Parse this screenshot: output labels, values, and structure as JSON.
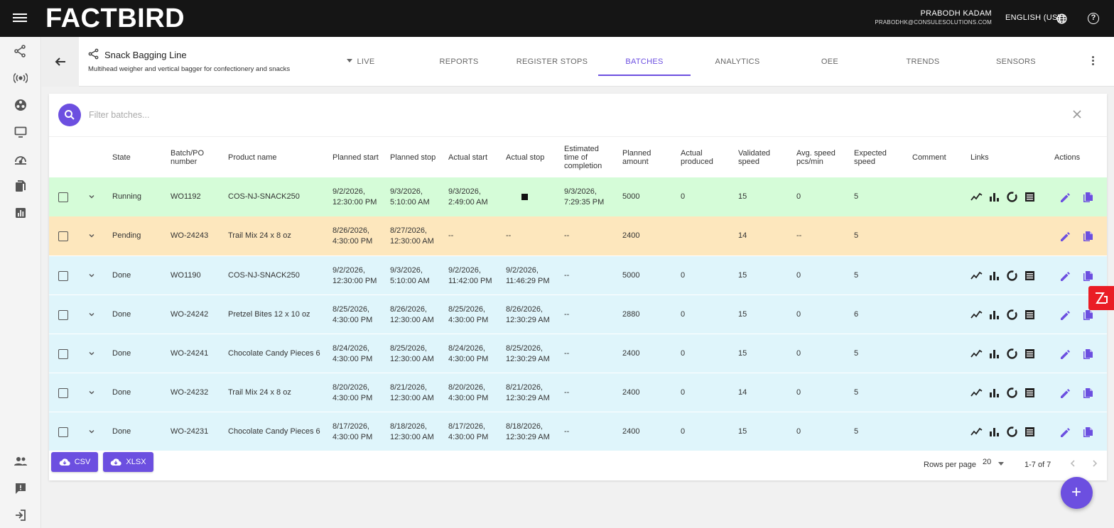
{
  "app": {
    "logo": "FACTBIRD",
    "user_name": "PRABODH KADAM",
    "user_email": "PRABODHK@CONSULESOLUTIONS.COM",
    "language": "ENGLISH (US)",
    "accent_color": "#6c4fe0"
  },
  "line": {
    "name": "Snack Bagging Line",
    "description": "Multihead weigher and vertical bagger for confectionery and snacks"
  },
  "tabs": [
    {
      "label": "LIVE"
    },
    {
      "label": "REPORTS"
    },
    {
      "label": "REGISTER STOPS"
    },
    {
      "label": "BATCHES",
      "active": true
    },
    {
      "label": "ANALYTICS"
    },
    {
      "label": "OEE"
    },
    {
      "label": "TRENDS"
    },
    {
      "label": "SENSORS"
    }
  ],
  "filter": {
    "placeholder": "Filter batches...",
    "value": ""
  },
  "columns": [
    "State",
    "Batch/PO number",
    "Product name",
    "Planned start",
    "Planned stop",
    "Actual start",
    "Actual stop",
    "Estimated time of completion",
    "Planned amount",
    "Actual produced",
    "Validated speed",
    "Avg. speed pcs/min",
    "Expected speed",
    "Comment",
    "Links",
    "Actions"
  ],
  "rows": [
    {
      "state": "Running",
      "batch": "WO1192",
      "product": "COS-NJ-SNACK250",
      "planned_start": "9/2/2026, 12:30:00 PM",
      "planned_stop": "9/3/2026, 5:10:00 AM",
      "actual_start": "9/3/2026, 2:49:00 AM",
      "actual_stop": "",
      "eta": "9/3/2026, 7:29:35 PM",
      "planned_amount": "5000",
      "actual_produced": "0",
      "validated_speed": "15",
      "avg_speed": "0",
      "expected_speed": "5",
      "comment": ""
    },
    {
      "state": "Pending",
      "batch": "WO-24243",
      "product": "Trail Mix 24 x 8 oz",
      "planned_start": "8/26/2026, 4:30:00 PM",
      "planned_stop": "8/27/2026, 12:30:00 AM",
      "actual_start": "--",
      "actual_stop": "--",
      "eta": "--",
      "planned_amount": "2400",
      "actual_produced": "",
      "validated_speed": "14",
      "avg_speed": "--",
      "expected_speed": "5",
      "comment": ""
    },
    {
      "state": "Done",
      "batch": "WO1190",
      "product": "COS-NJ-SNACK250",
      "planned_start": "9/2/2026, 12:30:00 PM",
      "planned_stop": "9/3/2026, 5:10:00 AM",
      "actual_start": "9/2/2026, 11:42:00 PM",
      "actual_stop": "9/2/2026, 11:46:29 PM",
      "eta": "--",
      "planned_amount": "5000",
      "actual_produced": "0",
      "validated_speed": "15",
      "avg_speed": "0",
      "expected_speed": "5",
      "comment": ""
    },
    {
      "state": "Done",
      "batch": "WO-24242",
      "product": "Pretzel Bites 12 x 10 oz",
      "planned_start": "8/25/2026, 4:30:00 PM",
      "planned_stop": "8/26/2026, 12:30:00 AM",
      "actual_start": "8/25/2026, 4:30:00 PM",
      "actual_stop": "8/26/2026, 12:30:29 AM",
      "eta": "--",
      "planned_amount": "2880",
      "actual_produced": "0",
      "validated_speed": "15",
      "avg_speed": "0",
      "expected_speed": "6",
      "comment": ""
    },
    {
      "state": "Done",
      "batch": "WO-24241",
      "product": "Chocolate Candy Pieces 6",
      "planned_start": "8/24/2026, 4:30:00 PM",
      "planned_stop": "8/25/2026, 12:30:00 AM",
      "actual_start": "8/24/2026, 4:30:00 PM",
      "actual_stop": "8/25/2026, 12:30:29 AM",
      "eta": "--",
      "planned_amount": "2400",
      "actual_produced": "0",
      "validated_speed": "15",
      "avg_speed": "0",
      "expected_speed": "5",
      "comment": ""
    },
    {
      "state": "Done",
      "batch": "WO-24232",
      "product": "Trail Mix 24 x 8 oz",
      "planned_start": "8/20/2026, 4:30:00 PM",
      "planned_stop": "8/21/2026, 12:30:00 AM",
      "actual_start": "8/20/2026, 4:30:00 PM",
      "actual_stop": "8/21/2026, 12:30:29 AM",
      "eta": "--",
      "planned_amount": "2400",
      "actual_produced": "0",
      "validated_speed": "14",
      "avg_speed": "0",
      "expected_speed": "5",
      "comment": ""
    },
    {
      "state": "Done",
      "batch": "WO-24231",
      "product": "Chocolate Candy Pieces 6",
      "planned_start": "8/17/2026, 4:30:00 PM",
      "planned_stop": "8/18/2026, 12:30:00 AM",
      "actual_start": "8/17/2026, 4:30:00 PM",
      "actual_stop": "8/18/2026, 12:30:29 AM",
      "eta": "--",
      "planned_amount": "2400",
      "actual_produced": "0",
      "validated_speed": "15",
      "avg_speed": "0",
      "expected_speed": "5",
      "comment": ""
    }
  ],
  "state_colors": {
    "Running": "#d5fcd8",
    "Pending": "#fde7bd",
    "Done": "#dff5fb"
  },
  "footer": {
    "csv_label": "CSV",
    "xlsx_label": "XLSX",
    "rows_per_page_label": "Rows per page",
    "rows_per_page": "20",
    "range": "1-7 of 7"
  },
  "fab_label": "+"
}
